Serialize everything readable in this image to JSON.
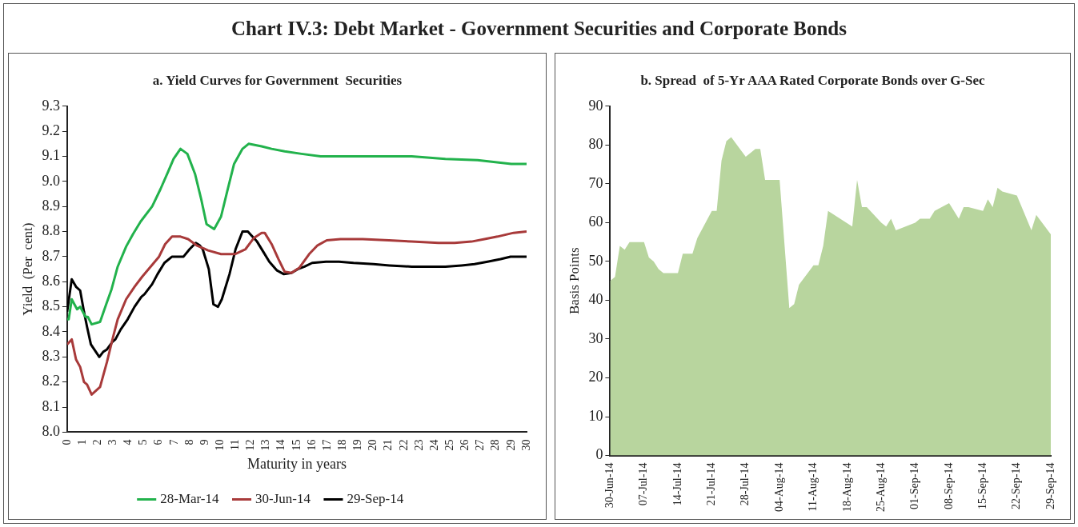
{
  "chart_data": [
    {
      "type": "line",
      "title": "Chart IV.3: Debt Market - Government Securities and Corporate Bonds",
      "subtitle": "a. Yield Curves for Government  Securities",
      "xlabel": "Maturity in years",
      "ylabel": "Yield  (Per  cent)",
      "legend": "bottom",
      "marker": "none",
      "xlim": [
        0,
        30
      ],
      "xticks": [
        0,
        1,
        2,
        3,
        4,
        5,
        6,
        7,
        8,
        9,
        10,
        11,
        12,
        13,
        14,
        15,
        16,
        17,
        18,
        19,
        20,
        21,
        22,
        23,
        24,
        25,
        26,
        27,
        28,
        29,
        30
      ],
      "ylim": [
        8.0,
        9.3
      ],
      "yticks": [
        {
          "value": 8.0,
          "label": "8.0"
        },
        {
          "value": 8.1,
          "label": "8.1"
        },
        {
          "value": 8.2,
          "label": "8.2"
        },
        {
          "value": 8.3,
          "label": "8.3"
        },
        {
          "value": 8.4,
          "label": "8.4"
        },
        {
          "value": 8.5,
          "label": "8.5"
        },
        {
          "value": 8.6,
          "label": "8.6"
        },
        {
          "value": 8.7,
          "label": "8.7"
        },
        {
          "value": 8.8,
          "label": "8.8"
        },
        {
          "value": 8.9,
          "label": "8.9"
        },
        {
          "value": 9.0,
          "label": "9.0"
        },
        {
          "value": 9.1,
          "label": "9.1"
        },
        {
          "value": 9.2,
          "label": "9.2"
        },
        {
          "value": 9.3,
          "label": "9.3"
        }
      ],
      "series": [
        {
          "name": "28-Mar-14",
          "color": "#22b24c",
          "x": [
            0,
            0.1,
            0.3,
            0.65,
            0.85,
            1.2,
            1.35,
            1.6,
            2.15,
            2.55,
            2.9,
            3.3,
            3.85,
            4.3,
            4.8,
            5.55,
            6.1,
            6.6,
            6.95,
            7.4,
            7.85,
            8.35,
            8.75,
            9.1,
            9.6,
            10.05,
            10.45,
            10.9,
            11.45,
            11.85,
            12.7,
            13.35,
            14.2,
            15.3,
            16.55,
            20.4,
            22.5,
            24.7,
            26.8,
            29,
            30
          ],
          "values": [
            8.45,
            8.45,
            8.53,
            8.49,
            8.5,
            8.46,
            8.46,
            8.43,
            8.44,
            8.51,
            8.57,
            8.66,
            8.74,
            8.79,
            8.84,
            8.9,
            8.97,
            9.04,
            9.09,
            9.13,
            9.11,
            9.03,
            8.93,
            8.83,
            8.81,
            8.86,
            8.96,
            9.07,
            9.13,
            9.15,
            9.14,
            9.13,
            9.12,
            9.11,
            9.1,
            9.1,
            9.1,
            9.09,
            9.085,
            9.07,
            9.07
          ]
        },
        {
          "name": "30-Jun-14",
          "color": "#a83a3a",
          "x": [
            0,
            0.3,
            0.58,
            0.85,
            1.1,
            1.3,
            1.6,
            2.15,
            2.6,
            3.0,
            3.3,
            3.85,
            4.4,
            4.9,
            5.45,
            6.0,
            6.4,
            6.85,
            7.4,
            7.9,
            8.45,
            9.2,
            10.05,
            10.95,
            11.65,
            12.2,
            12.7,
            12.9,
            13.35,
            13.8,
            14.2,
            14.65,
            15.15,
            15.8,
            16.35,
            16.95,
            17.85,
            19.3,
            21,
            22.5,
            24.25,
            25.3,
            26.4,
            27.25,
            28.1,
            29.15,
            30
          ],
          "values": [
            8.35,
            8.37,
            8.29,
            8.26,
            8.2,
            8.19,
            8.15,
            8.18,
            8.28,
            8.38,
            8.45,
            8.53,
            8.58,
            8.62,
            8.66,
            8.7,
            8.75,
            8.78,
            8.78,
            8.77,
            8.745,
            8.725,
            8.71,
            8.71,
            8.73,
            8.775,
            8.795,
            8.795,
            8.75,
            8.69,
            8.64,
            8.635,
            8.655,
            8.71,
            8.745,
            8.765,
            8.77,
            8.77,
            8.765,
            8.76,
            8.755,
            8.755,
            8.76,
            8.77,
            8.78,
            8.795,
            8.8
          ]
        },
        {
          "name": "29-Sep-14",
          "color": "#000000",
          "x": [
            0,
            0.3,
            0.58,
            0.85,
            1.1,
            1.3,
            1.55,
            2.1,
            2.35,
            2.6,
            2.95,
            3.15,
            3.5,
            3.95,
            4.4,
            4.85,
            5.05,
            5.55,
            5.9,
            6.35,
            6.85,
            7.6,
            8.0,
            8.4,
            8.65,
            8.85,
            9.25,
            9.55,
            9.85,
            10.1,
            10.6,
            11.0,
            11.45,
            11.8,
            11.95,
            12.4,
            12.8,
            13.2,
            13.7,
            14.15,
            14.65,
            15.05,
            15.5,
            16.0,
            16.9,
            17.75,
            18.7,
            20.0,
            21.05,
            22.5,
            23.8,
            24.7,
            25.75,
            26.6,
            27.45,
            28.3,
            28.95,
            30
          ],
          "values": [
            8.48,
            8.61,
            8.58,
            8.565,
            8.48,
            8.42,
            8.35,
            8.3,
            8.32,
            8.33,
            8.36,
            8.37,
            8.41,
            8.45,
            8.5,
            8.54,
            8.55,
            8.59,
            8.63,
            8.675,
            8.7,
            8.7,
            8.73,
            8.755,
            8.745,
            8.73,
            8.65,
            8.51,
            8.5,
            8.53,
            8.63,
            8.73,
            8.8,
            8.8,
            8.79,
            8.76,
            8.72,
            8.68,
            8.645,
            8.63,
            8.635,
            8.65,
            8.66,
            8.675,
            8.68,
            8.68,
            8.675,
            8.67,
            8.665,
            8.66,
            8.66,
            8.66,
            8.665,
            8.67,
            8.68,
            8.69,
            8.7,
            8.7
          ]
        }
      ]
    },
    {
      "type": "area",
      "title": "b. Spread  of 5-Yr AAA Rated Corporate Bonds over G-Sec",
      "ylabel": "Basis Points",
      "marker": "none",
      "xlim": [
        "--06-30",
        "--09-29"
      ],
      "xticks": [
        {
          "value": "--06-30",
          "label": "30-Jun-14"
        },
        {
          "value": "--07-07",
          "label": "07-Jul-14"
        },
        {
          "value": "--07-14",
          "label": "14-Jul-14"
        },
        {
          "value": "--07-21",
          "label": "21-Jul-14"
        },
        {
          "value": "--07-28",
          "label": "28-Jul-14"
        },
        {
          "value": "--08-04",
          "label": "04-Aug-14"
        },
        {
          "value": "--08-11",
          "label": "11-Aug-14"
        },
        {
          "value": "--08-18",
          "label": "18-Aug-14"
        },
        {
          "value": "--08-25",
          "label": "25-Aug-14"
        },
        {
          "value": "--09-01",
          "label": "01-Sep-14"
        },
        {
          "value": "--09-08",
          "label": "08-Sep-14"
        },
        {
          "value": "--09-15",
          "label": "15-Sep-14"
        },
        {
          "value": "--09-22",
          "label": "22-Sep-14"
        },
        {
          "value": "--09-29",
          "label": "29-Sep-14"
        }
      ],
      "ylim": [
        0,
        90
      ],
      "yticks": [
        0,
        10,
        20,
        30,
        40,
        50,
        60,
        70,
        80,
        90
      ],
      "x": [
        "--06-30",
        "--07-01",
        "--07-02",
        "--07-03",
        "--07-04",
        "--07-07",
        "--07-08",
        "--07-09",
        "--07-10",
        "--07-11",
        "--07-14",
        "--07-15",
        "--07-17",
        "--07-18",
        "--07-21",
        "--07-22",
        "--07-23",
        "--07-24",
        "--07-25",
        "--07-28",
        "--07-30",
        "--07-31",
        "--08-01",
        "--08-04",
        "--08-06",
        "--08-07",
        "--08-08",
        "--08-11",
        "--08-12",
        "--08-13",
        "--08-14",
        "--08-19",
        "--08-20",
        "--08-21",
        "--08-22",
        "--08-25",
        "--08-26",
        "--08-27",
        "--08-28",
        "--09-01",
        "--09-02",
        "--09-04",
        "--09-05",
        "--09-08",
        "--09-10",
        "--09-11",
        "--09-12",
        "--09-15",
        "--09-16",
        "--09-17",
        "--09-18",
        "--09-19",
        "--09-22",
        "--09-25",
        "--09-26",
        "--09-29"
      ],
      "series": [
        {
          "color": "#b8d59e",
          "values": [
            45,
            46,
            54,
            53,
            55,
            55,
            51,
            50,
            48,
            47,
            47,
            52,
            52,
            56,
            63,
            63,
            76,
            81,
            82,
            77,
            79,
            79,
            71,
            71,
            38,
            39,
            44,
            49,
            49,
            54,
            63,
            59,
            71,
            64,
            64,
            60,
            59,
            61,
            58,
            60,
            61,
            61,
            63,
            65,
            61,
            64,
            64,
            63,
            66,
            64,
            69,
            68,
            67,
            58,
            62,
            57
          ]
        }
      ]
    }
  ]
}
